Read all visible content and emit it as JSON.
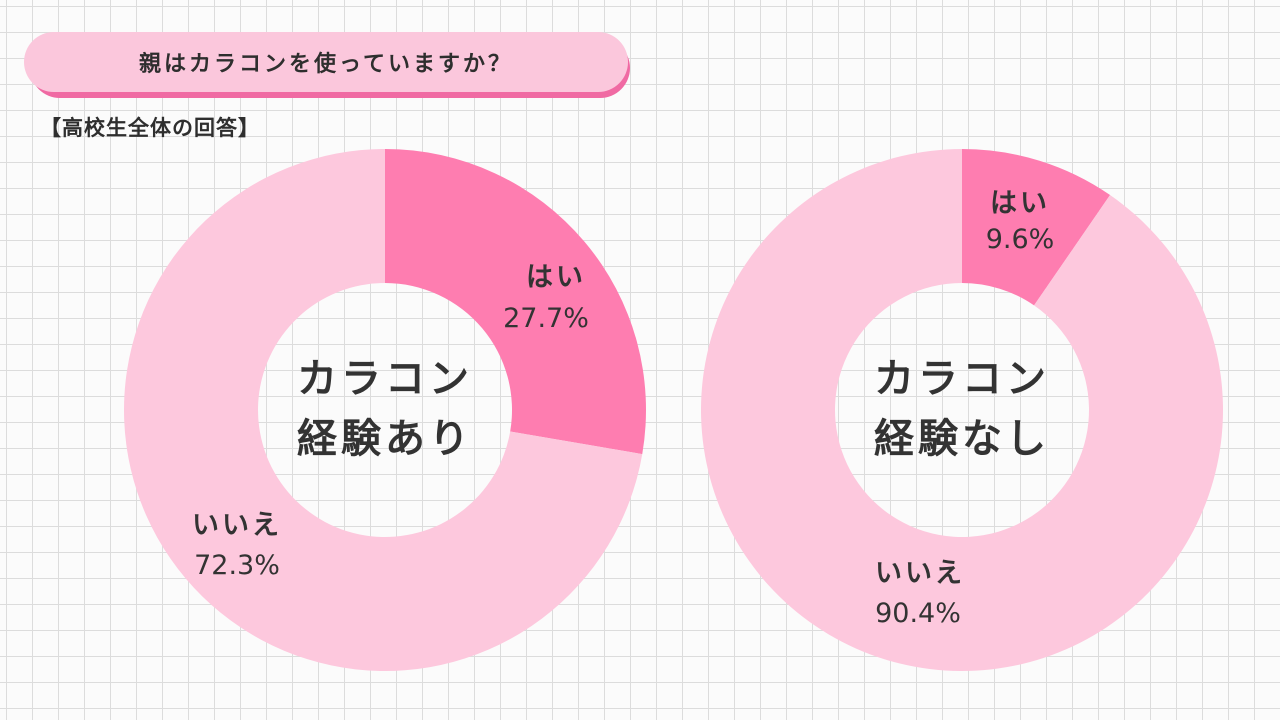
{
  "question": "親はカラコンを使っていますか？",
  "subtitle": "【高校生全体の回答】",
  "colors": {
    "yes": "#fe7db0",
    "no": "#fdc8dd",
    "pill_bg": "#fbc7dc",
    "pill_shadow": "#f06aa3",
    "grid": "#dcdcdc"
  },
  "chart_data": [
    {
      "type": "pie",
      "center_label": [
        "カラコン",
        "経験あり"
      ],
      "slices": [
        {
          "label": "はい",
          "value": 27.7,
          "value_label": "27.7%"
        },
        {
          "label": "いいえ",
          "value": 72.3,
          "value_label": "72.3%"
        }
      ]
    },
    {
      "type": "pie",
      "center_label": [
        "カラコン",
        "経験なし"
      ],
      "slices": [
        {
          "label": "はい",
          "value": 9.6,
          "value_label": "9.6%"
        },
        {
          "label": "いいえ",
          "value": 90.4,
          "value_label": "90.4%"
        }
      ]
    }
  ]
}
